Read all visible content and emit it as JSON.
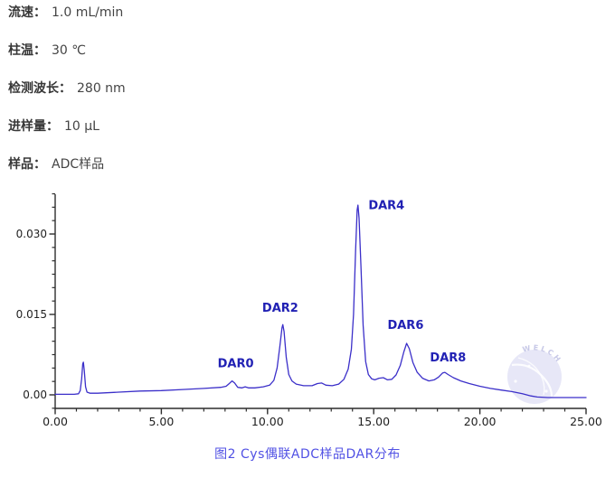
{
  "params": [
    {
      "label": "流速：",
      "value": "1.0 mL/min"
    },
    {
      "label": "柱温：",
      "value": "30 ℃"
    },
    {
      "label": "检测波长：",
      "value": "280 nm"
    },
    {
      "label": "进样量：",
      "value": "10 μL"
    },
    {
      "label": "样品：",
      "value": "ADC样品"
    }
  ],
  "caption": "图2 Cys偶联ADC样品DAR分布",
  "watermark": "WELCH",
  "chart_data": {
    "type": "line",
    "title": "",
    "xlabel": "",
    "ylabel": "",
    "xlim": [
      0,
      25
    ],
    "ylim": [
      -0.0025,
      0.0375
    ],
    "grid": false,
    "x_major_ticks": [
      0,
      5,
      10,
      15,
      20,
      25
    ],
    "x_ticklabels": [
      "0.00",
      "5.00",
      "10.00",
      "15.00",
      "20.00",
      "25.00"
    ],
    "x_minor_step": 1,
    "y_major_ticks": [
      0,
      0.015,
      0.03
    ],
    "y_ticklabels": [
      "0.00",
      "0.015",
      "0.030"
    ],
    "y_minor_step": 0.0025,
    "line_color": "#3b2fc9",
    "axis_color": "#2d2d2d",
    "tick_label_color": "#1f1f1f",
    "peak_label_color": "#2121b4",
    "peaks": [
      {
        "label": "DAR0",
        "x": 8.35,
        "y": 0.0026,
        "label_x": 8.5,
        "label_y": 0.0051
      },
      {
        "label": "DAR2",
        "x": 10.72,
        "y": 0.0131,
        "label_x": 10.6,
        "label_y": 0.0155
      },
      {
        "label": "DAR4",
        "x": 14.26,
        "y": 0.0354,
        "label_x": 15.6,
        "label_y": 0.0346
      },
      {
        "label": "DAR6",
        "x": 16.55,
        "y": 0.0096,
        "label_x": 16.5,
        "label_y": 0.0123
      },
      {
        "label": "DAR8",
        "x": 18.3,
        "y": 0.0042,
        "label_x": 18.5,
        "label_y": 0.0062
      }
    ],
    "trace": [
      [
        0,
        0.0001
      ],
      [
        0.9,
        0.0001
      ],
      [
        1.1,
        0.0002
      ],
      [
        1.18,
        0.0008
      ],
      [
        1.25,
        0.003
      ],
      [
        1.3,
        0.0058
      ],
      [
        1.33,
        0.0061
      ],
      [
        1.37,
        0.0045
      ],
      [
        1.43,
        0.0015
      ],
      [
        1.5,
        0.0005
      ],
      [
        1.65,
        0.0003
      ],
      [
        2,
        0.0003
      ],
      [
        3,
        0.0005
      ],
      [
        4,
        0.0007
      ],
      [
        5,
        0.0008
      ],
      [
        6,
        0.001
      ],
      [
        7,
        0.0012
      ],
      [
        7.8,
        0.0014
      ],
      [
        8.05,
        0.0016
      ],
      [
        8.2,
        0.0021
      ],
      [
        8.33,
        0.0026
      ],
      [
        8.45,
        0.0022
      ],
      [
        8.6,
        0.0014
      ],
      [
        8.8,
        0.0013
      ],
      [
        8.95,
        0.0015
      ],
      [
        9.1,
        0.0013
      ],
      [
        9.4,
        0.0013
      ],
      [
        9.8,
        0.0015
      ],
      [
        10.1,
        0.0018
      ],
      [
        10.3,
        0.0027
      ],
      [
        10.45,
        0.005
      ],
      [
        10.58,
        0.009
      ],
      [
        10.68,
        0.0125
      ],
      [
        10.72,
        0.0131
      ],
      [
        10.78,
        0.0118
      ],
      [
        10.88,
        0.007
      ],
      [
        11,
        0.0038
      ],
      [
        11.15,
        0.0026
      ],
      [
        11.35,
        0.002
      ],
      [
        11.7,
        0.0017
      ],
      [
        12.1,
        0.0017
      ],
      [
        12.35,
        0.0021
      ],
      [
        12.55,
        0.0022
      ],
      [
        12.75,
        0.0018
      ],
      [
        13.05,
        0.0017
      ],
      [
        13.35,
        0.002
      ],
      [
        13.6,
        0.0029
      ],
      [
        13.8,
        0.0048
      ],
      [
        13.95,
        0.0085
      ],
      [
        14.05,
        0.015
      ],
      [
        14.15,
        0.027
      ],
      [
        14.22,
        0.0345
      ],
      [
        14.26,
        0.0354
      ],
      [
        14.31,
        0.033
      ],
      [
        14.4,
        0.024
      ],
      [
        14.5,
        0.013
      ],
      [
        14.62,
        0.0062
      ],
      [
        14.75,
        0.0038
      ],
      [
        14.9,
        0.003
      ],
      [
        15.05,
        0.0028
      ],
      [
        15.25,
        0.0031
      ],
      [
        15.45,
        0.0032
      ],
      [
        15.65,
        0.0028
      ],
      [
        15.85,
        0.0029
      ],
      [
        16.05,
        0.0037
      ],
      [
        16.25,
        0.0055
      ],
      [
        16.42,
        0.008
      ],
      [
        16.55,
        0.0096
      ],
      [
        16.68,
        0.0086
      ],
      [
        16.85,
        0.006
      ],
      [
        17.05,
        0.0042
      ],
      [
        17.3,
        0.0031
      ],
      [
        17.6,
        0.0026
      ],
      [
        17.85,
        0.0028
      ],
      [
        18.05,
        0.0033
      ],
      [
        18.25,
        0.0041
      ],
      [
        18.35,
        0.0042
      ],
      [
        18.5,
        0.0038
      ],
      [
        18.75,
        0.0032
      ],
      [
        19.1,
        0.0026
      ],
      [
        19.5,
        0.0021
      ],
      [
        20,
        0.0016
      ],
      [
        20.5,
        0.0012
      ],
      [
        21,
        0.0009
      ],
      [
        21.5,
        0.0006
      ],
      [
        22,
        0.0002
      ],
      [
        22.4,
        -0.0002
      ],
      [
        22.7,
        -0.0004
      ],
      [
        23.2,
        -0.0005
      ],
      [
        24,
        -0.0005
      ],
      [
        25,
        -0.0005
      ]
    ]
  }
}
